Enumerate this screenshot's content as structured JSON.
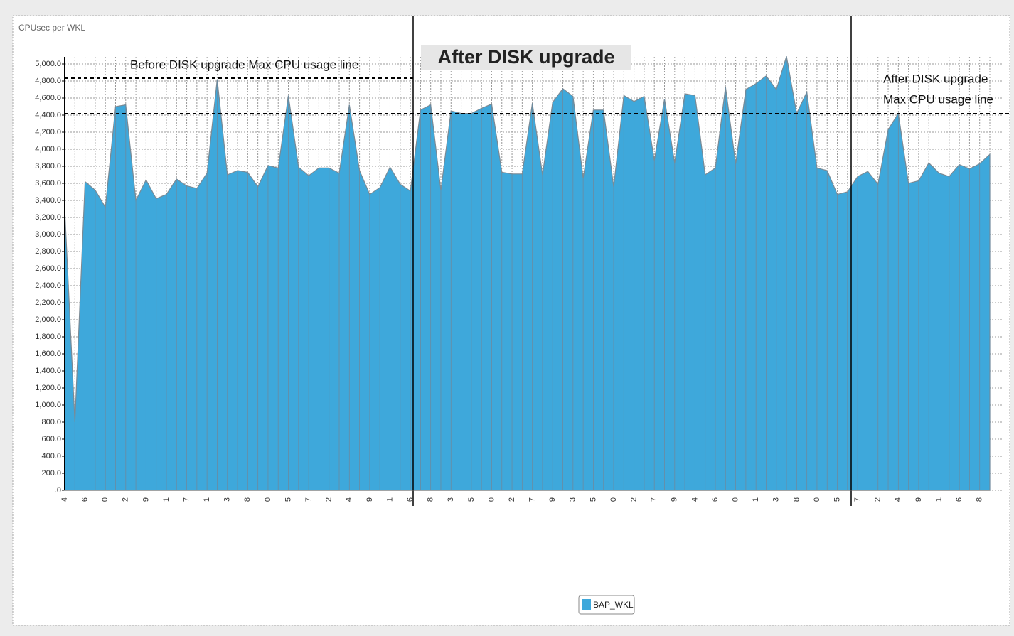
{
  "chart_data": {
    "type": "area",
    "title": "CPUsec per WKL",
    "categories": [
      "4",
      null,
      "6",
      null,
      "0",
      null,
      "2",
      null,
      "9",
      null,
      "1",
      null,
      "7",
      null,
      "1",
      null,
      "3",
      null,
      "8",
      null,
      "0",
      null,
      "5",
      null,
      "7",
      null,
      "2",
      null,
      "4",
      null,
      "9",
      null,
      "1",
      null,
      "6",
      null,
      "8",
      null,
      "3",
      null,
      "5",
      null,
      "0",
      null,
      "2",
      null,
      "7",
      null,
      "9",
      null,
      "3",
      null,
      "5",
      null,
      "0",
      null,
      "2",
      null,
      "7",
      null,
      "9",
      null,
      "4",
      null,
      "6",
      null,
      "0",
      null,
      "1",
      null,
      "3",
      null,
      "8",
      null,
      "0",
      null,
      "5",
      null,
      "7",
      null,
      "2",
      null,
      "4",
      null,
      "9",
      null,
      "1",
      null,
      "6",
      null,
      "8",
      null
    ],
    "series": [
      {
        "name": "BAP_WKL",
        "color": "#3ea8db",
        "values": [
          3300,
          800,
          3620,
          3520,
          3320,
          4500,
          4520,
          3400,
          3640,
          3420,
          3470,
          3650,
          3570,
          3540,
          3720,
          4820,
          3700,
          3750,
          3730,
          3560,
          3810,
          3780,
          4630,
          3790,
          3690,
          3780,
          3780,
          3720,
          4520,
          3750,
          3470,
          3550,
          3790,
          3590,
          3510,
          4460,
          4520,
          3520,
          4450,
          4420,
          4420,
          4480,
          4530,
          3730,
          3710,
          3710,
          4540,
          3700,
          4550,
          4710,
          4620,
          3660,
          4460,
          4460,
          3560,
          4630,
          4560,
          4620,
          3870,
          4590,
          3840,
          4650,
          4630,
          3700,
          3780,
          4730,
          3830,
          4700,
          4770,
          4860,
          4700,
          5090,
          4420,
          4670,
          3780,
          3750,
          3470,
          3500,
          3680,
          3740,
          3590,
          4230,
          4420,
          3600,
          3630,
          3840,
          3720,
          3680,
          3820,
          3770,
          3830,
          3940
        ]
      }
    ],
    "ylim": [
      0,
      5000
    ],
    "yticks": [
      {
        "value": 0,
        "label": ".0"
      },
      {
        "value": 200,
        "label": "200.0"
      },
      {
        "value": 400,
        "label": "400.0"
      },
      {
        "value": 600,
        "label": "600.0"
      },
      {
        "value": 800,
        "label": "800.0"
      },
      {
        "value": 1000,
        "label": "1,000.0"
      },
      {
        "value": 1200,
        "label": "1,200.0"
      },
      {
        "value": 1400,
        "label": "1,400.0"
      },
      {
        "value": 1600,
        "label": "1,600.0"
      },
      {
        "value": 1800,
        "label": "1,800.0"
      },
      {
        "value": 2000,
        "label": "2,000.0"
      },
      {
        "value": 2200,
        "label": "2,200.0"
      },
      {
        "value": 2400,
        "label": "2,400.0"
      },
      {
        "value": 2600,
        "label": "2,600.0"
      },
      {
        "value": 2800,
        "label": "2,800.0"
      },
      {
        "value": 3000,
        "label": "3,000.0"
      },
      {
        "value": 3200,
        "label": "3,200.0"
      },
      {
        "value": 3400,
        "label": "3,400.0"
      },
      {
        "value": 3600,
        "label": "3,600.0"
      },
      {
        "value": 3800,
        "label": "3,800.0"
      },
      {
        "value": 4000,
        "label": "4,000.0"
      },
      {
        "value": 4200,
        "label": "4,200.0"
      },
      {
        "value": 4400,
        "label": "4,400.0"
      },
      {
        "value": 4600,
        "label": "4,600.0"
      },
      {
        "value": 4800,
        "label": "4,800.0"
      },
      {
        "value": 5000,
        "label": "5,000.0"
      }
    ],
    "grid": true,
    "reference_lines": [
      {
        "value": 4833
      },
      {
        "value": 4417
      }
    ],
    "annotations": [
      "Before DISK upgrade Max CPU usage line",
      "After DISK upgrade",
      "After DISK upgrade",
      "Max CPU usage line"
    ],
    "legend": "bottom"
  }
}
